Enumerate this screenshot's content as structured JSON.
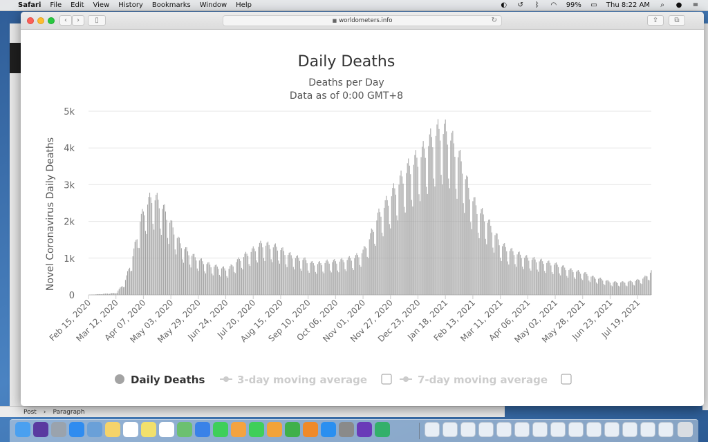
{
  "menubar": {
    "app": "Safari",
    "items": [
      "File",
      "Edit",
      "View",
      "History",
      "Bookmarks",
      "Window",
      "Help"
    ],
    "battery": "99%",
    "clock": "Thu 8:22 AM"
  },
  "browser": {
    "url": "worldometers.info"
  },
  "background_bar": {
    "crumb1": "Post",
    "crumb2": "Paragraph"
  },
  "chart_data": {
    "type": "bar",
    "title": "Daily Deaths",
    "subtitle": "Deaths per Day",
    "subtitle2": "Data as of 0:00 GMT+8",
    "ylabel": "Novel Coronavirus Daily Deaths",
    "xlabel": "",
    "ylim": [
      0,
      5000
    ],
    "yticks": [
      "0",
      "1k",
      "2k",
      "3k",
      "4k",
      "5k"
    ],
    "ytick_values": [
      0,
      1000,
      2000,
      3000,
      4000,
      5000
    ],
    "x_start": "2020-02-15",
    "x_end": "2021-08-01",
    "xtick_labels": [
      "Feb 15, 2020",
      "Mar 12, 2020",
      "Apr 07, 2020",
      "May 03, 2020",
      "May 29, 2020",
      "Jun 24, 2020",
      "Jul 20, 2020",
      "Aug 15, 2020",
      "Sep 10, 2020",
      "Oct 06, 2020",
      "Nov 01, 2020",
      "Nov 27, 2020",
      "Dec 23, 2020",
      "Jan 18, 2021",
      "Feb 13, 2021",
      "Mar 11, 2021",
      "Apr 06, 2021",
      "May 02, 2021",
      "May 28, 2021",
      "Jun 23, 2021",
      "Jul 19, 2021"
    ],
    "grid": true,
    "bar_color": "#a3a3a3",
    "series": [
      {
        "name": "Daily Deaths",
        "x_dates": [
          "2020-02-15",
          "2020-03-12",
          "2020-03-20",
          "2020-03-28",
          "2020-04-04",
          "2020-04-10",
          "2020-04-15",
          "2020-04-21",
          "2020-04-28",
          "2020-05-05",
          "2020-05-12",
          "2020-05-19",
          "2020-05-26",
          "2020-06-02",
          "2020-06-10",
          "2020-06-18",
          "2020-06-26",
          "2020-07-04",
          "2020-07-12",
          "2020-07-20",
          "2020-07-28",
          "2020-08-05",
          "2020-08-13",
          "2020-08-21",
          "2020-08-29",
          "2020-09-06",
          "2020-09-14",
          "2020-09-22",
          "2020-09-30",
          "2020-10-08",
          "2020-10-16",
          "2020-10-24",
          "2020-11-01",
          "2020-11-08",
          "2020-11-15",
          "2020-11-22",
          "2020-11-29",
          "2020-12-06",
          "2020-12-13",
          "2020-12-20",
          "2020-12-27",
          "2021-01-03",
          "2021-01-08",
          "2021-01-13",
          "2021-01-18",
          "2021-01-23",
          "2021-01-28",
          "2021-02-03",
          "2021-02-10",
          "2021-02-17",
          "2021-02-24",
          "2021-03-03",
          "2021-03-11",
          "2021-03-19",
          "2021-03-27",
          "2021-04-04",
          "2021-04-12",
          "2021-04-20",
          "2021-04-28",
          "2021-05-06",
          "2021-05-14",
          "2021-05-22",
          "2021-05-30",
          "2021-06-07",
          "2021-06-15",
          "2021-06-23",
          "2021-07-01",
          "2021-07-09",
          "2021-07-17",
          "2021-07-25",
          "2021-08-01"
        ],
        "values": [
          0,
          50,
          300,
          1000,
          1900,
          2300,
          2500,
          2400,
          2100,
          1700,
          1300,
          1100,
          950,
          850,
          750,
          700,
          650,
          850,
          1000,
          1150,
          1300,
          1250,
          1200,
          1050,
          950,
          900,
          800,
          800,
          850,
          850,
          900,
          950,
          1100,
          1500,
          2000,
          2300,
          2600,
          2900,
          3200,
          3400,
          3600,
          3900,
          4100,
          4200,
          4150,
          4000,
          3700,
          3300,
          2600,
          2200,
          2000,
          1700,
          1300,
          1150,
          1050,
          950,
          900,
          850,
          800,
          750,
          650,
          600,
          550,
          450,
          400,
          330,
          320,
          330,
          360,
          430,
          600
        ]
      }
    ],
    "legend": {
      "placement": "bottom",
      "items": [
        {
          "label": "Daily Deaths",
          "active": true
        },
        {
          "label": "3-day moving average",
          "active": false
        },
        {
          "label": "7-day moving average",
          "active": false
        }
      ]
    }
  }
}
